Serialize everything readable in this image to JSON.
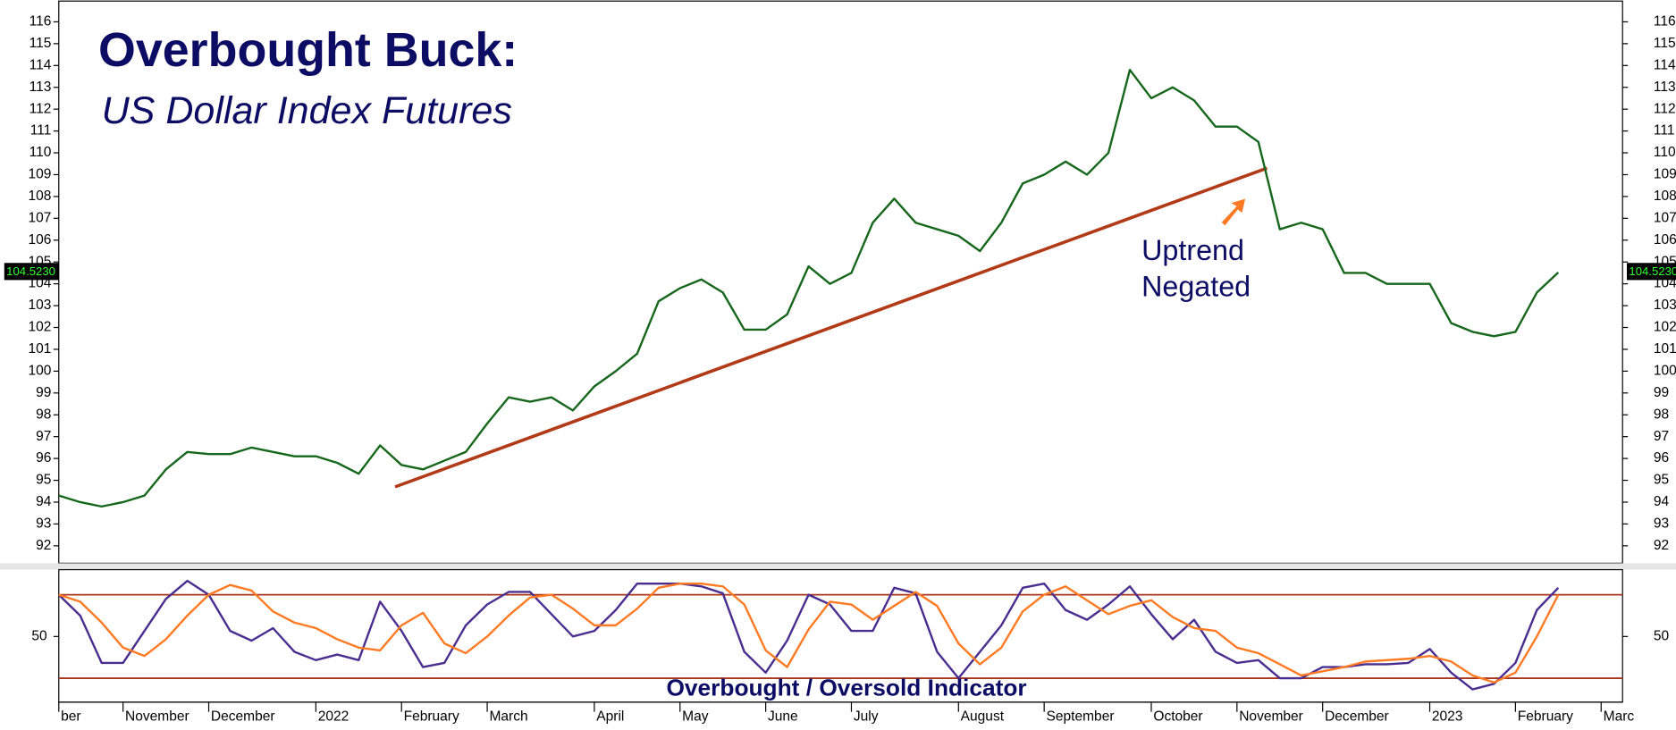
{
  "chart_data": {
    "type": "line",
    "title": "Overbought Buck:",
    "subtitle": "US Dollar Index Futures",
    "categories": [
      "ber",
      null,
      null,
      "November",
      null,
      null,
      null,
      "December",
      null,
      null,
      null,
      null,
      "2022",
      null,
      null,
      null,
      "February",
      null,
      null,
      null,
      "March",
      null,
      null,
      null,
      null,
      "April",
      null,
      null,
      null,
      "May",
      null,
      null,
      null,
      "June",
      null,
      null,
      null,
      "July",
      null,
      null,
      null,
      null,
      "August",
      null,
      null,
      null,
      "September",
      null,
      null,
      null,
      null,
      "October",
      null,
      null,
      null,
      "November",
      null,
      null,
      null,
      "December",
      null,
      null,
      null,
      null,
      "2023",
      null,
      null,
      null,
      "February",
      null,
      null,
      null,
      "Marc"
    ],
    "series": [
      {
        "color": "#16661c",
        "values": [
          94.3,
          94.0,
          93.8,
          94.0,
          94.3,
          95.5,
          96.3,
          96.2,
          96.2,
          96.5,
          96.3,
          96.1,
          96.1,
          95.8,
          95.3,
          96.6,
          95.7,
          95.5,
          95.9,
          96.3,
          97.6,
          98.8,
          98.6,
          98.8,
          98.2,
          99.3,
          100.0,
          100.8,
          103.2,
          103.8,
          104.2,
          103.6,
          101.9,
          101.9,
          102.6,
          104.8,
          104.0,
          104.5,
          106.8,
          107.9,
          106.8,
          106.5,
          106.2,
          105.5,
          106.8,
          108.6,
          109.0,
          109.6,
          109.0,
          110.0,
          113.8,
          112.5,
          113.0,
          112.4,
          111.2,
          111.2,
          110.5,
          106.5,
          106.8,
          106.5,
          104.5,
          104.5,
          104.0,
          104.0,
          104.0,
          102.2,
          101.8,
          101.6,
          101.8,
          103.6,
          104.523,
          null,
          null
        ]
      }
    ],
    "ylim": [
      91.2,
      117.0
    ],
    "yticks": [
      92,
      93,
      94,
      95,
      96,
      97,
      98,
      99,
      100,
      101,
      102,
      103,
      104,
      105,
      106,
      107,
      108,
      109,
      110,
      111,
      112,
      113,
      114,
      115,
      116
    ],
    "last_label": "104.5230",
    "trendline": {
      "color": "#b13a17",
      "x": [
        15.7,
        56.4
      ],
      "y": [
        94.7,
        109.3
      ]
    },
    "annotation_lines": [
      "Uptrend",
      "Negated"
    ],
    "indicator": {
      "type": "line",
      "title": "Overbought / Oversold Indicator",
      "series": [
        {
          "color": "#4b2d8f",
          "values": [
            80,
            65,
            31,
            31,
            54,
            77,
            90,
            80,
            54,
            47,
            56,
            39,
            33,
            37,
            33,
            75,
            54,
            28,
            31,
            58,
            73,
            82,
            82,
            66,
            50,
            54,
            69,
            88,
            88,
            88,
            86,
            81,
            39,
            24,
            47,
            80,
            73,
            54,
            54,
            85,
            81,
            39,
            20,
            39,
            58,
            85,
            88,
            69,
            62,
            73,
            86,
            66,
            48,
            62,
            39,
            31,
            33,
            20,
            20,
            28,
            28,
            30,
            30,
            31,
            41,
            24,
            12,
            16,
            31,
            69,
            85,
            null,
            null
          ]
        },
        {
          "color": "#ff7a22",
          "values": [
            80,
            75,
            60,
            42,
            36,
            48,
            65,
            80,
            87,
            83,
            68,
            60,
            56,
            48,
            42,
            40,
            58,
            67,
            45,
            38,
            50,
            65,
            78,
            80,
            70,
            58,
            58,
            70,
            85,
            88,
            88,
            86,
            73,
            40,
            28,
            55,
            75,
            73,
            62,
            72,
            82,
            72,
            45,
            30,
            42,
            68,
            80,
            86,
            76,
            66,
            72,
            76,
            64,
            56,
            54,
            42,
            38,
            30,
            22,
            25,
            28,
            32,
            33,
            34,
            36,
            32,
            22,
            17,
            24,
            50,
            80,
            null,
            null
          ]
        }
      ],
      "ylim": [
        2,
        98
      ],
      "yticks": [
        50
      ],
      "levels": [
        80,
        20
      ],
      "level_color": "#a8351a"
    }
  }
}
